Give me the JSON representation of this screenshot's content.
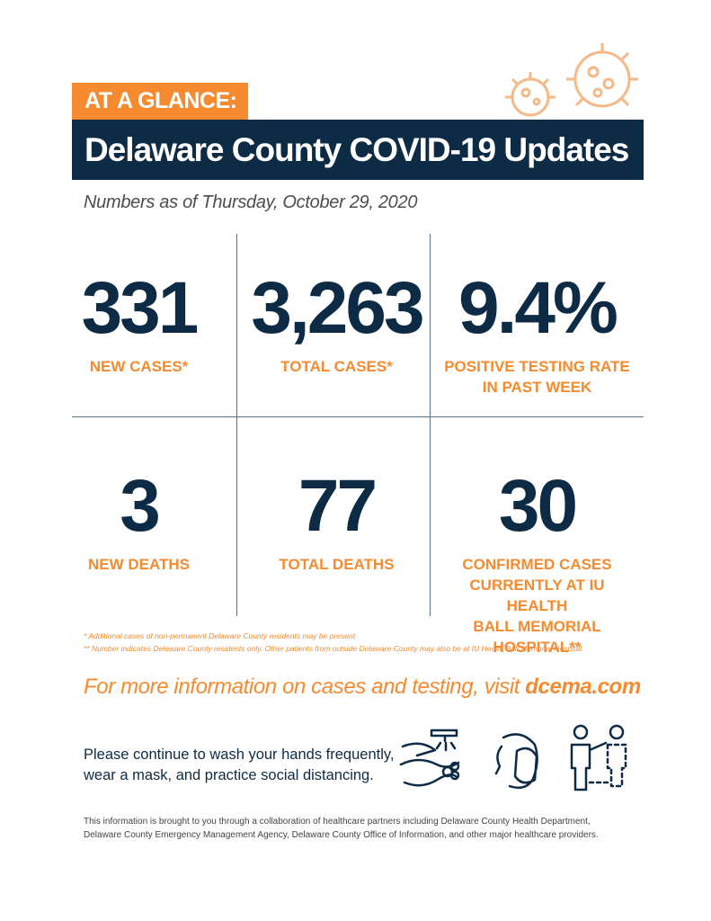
{
  "header": {
    "tag": "AT A GLANCE:",
    "title": "Delaware County COVID-19 Updates",
    "date_line": "Numbers as of Thursday, October 29, 2020"
  },
  "stats": [
    {
      "value": "331",
      "label": [
        "NEW CASES*"
      ]
    },
    {
      "value": "3,263",
      "label": [
        "TOTAL CASES*"
      ]
    },
    {
      "value": "9.4%",
      "label": [
        "POSITIVE TESTING RATE",
        "IN PAST WEEK"
      ]
    },
    {
      "value": "3",
      "label": [
        "NEW DEATHS"
      ]
    },
    {
      "value": "77",
      "label": [
        "TOTAL DEATHS"
      ]
    },
    {
      "value": "30",
      "label": [
        "CONFIRMED CASES",
        "CURRENTLY AT IU HEALTH",
        "BALL MEMORIAL HOSPITAL**"
      ]
    }
  ],
  "footnotes": [
    "*   Additional cases of non-permanent Delaware County residents may be present.",
    "** Number indicates Delaware County residents only. Other patients from outside Delaware County may also be at IU Health Ball Memorial Hospital."
  ],
  "info": {
    "text": "For more information on cases and testing, visit ",
    "link": "dcema.com"
  },
  "reminder": [
    "Please continue to wash your hands frequently,",
    "wear a mask, and practice social distancing."
  ],
  "credit": [
    "This information is brought to you through a collaboration of healthcare partners including Delaware County Health Department,",
    "Delaware County Emergency Management Agency, Delaware County Office of Information, and other major healthcare providers."
  ]
}
